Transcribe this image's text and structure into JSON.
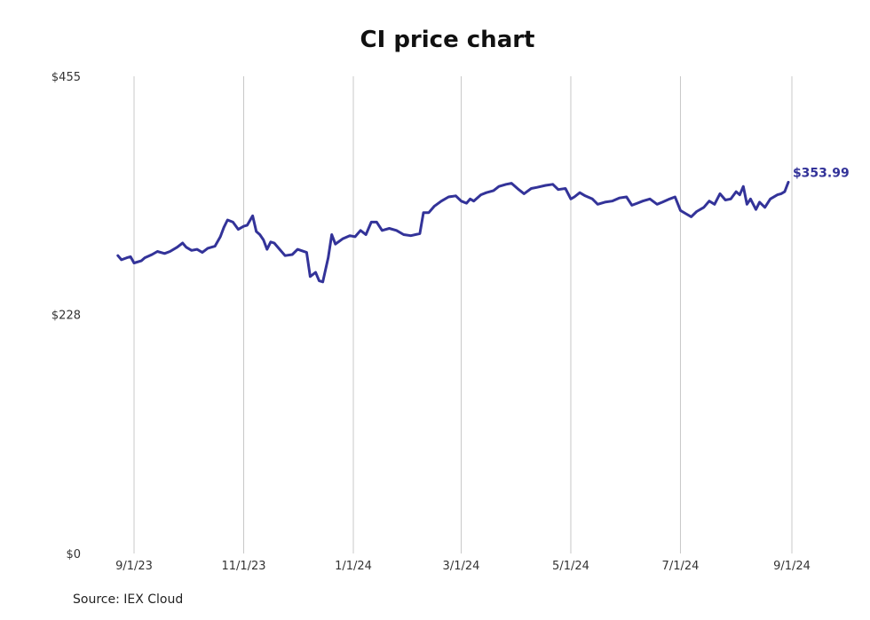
{
  "chart_data": {
    "type": "line",
    "title": "CI price chart",
    "xlabel": "",
    "ylabel": "",
    "source": "Source: IEX Cloud",
    "y_ticks": [
      "$0",
      "$228",
      "$455"
    ],
    "ylim": [
      0,
      455
    ],
    "x_ticks": [
      "9/1/23",
      "11/1/23",
      "1/1/24",
      "3/1/24",
      "5/1/24",
      "7/1/24",
      "9/1/24"
    ],
    "xlim": [
      "2023-08-14",
      "2024-09-30"
    ],
    "end_label": "$353.99",
    "line_color": "#333399",
    "grid": "vertical",
    "series": [
      {
        "name": "",
        "points": [
          [
            "2023-08-23",
            284
          ],
          [
            "2023-08-25",
            280
          ],
          [
            "2023-08-28",
            282
          ],
          [
            "2023-08-30",
            283
          ],
          [
            "2023-09-01",
            277
          ],
          [
            "2023-09-05",
            279
          ],
          [
            "2023-09-07",
            282
          ],
          [
            "2023-09-11",
            285
          ],
          [
            "2023-09-14",
            288
          ],
          [
            "2023-09-18",
            286
          ],
          [
            "2023-09-21",
            288
          ],
          [
            "2023-09-25",
            292
          ],
          [
            "2023-09-28",
            296
          ],
          [
            "2023-09-30",
            292
          ],
          [
            "2023-10-03",
            289
          ],
          [
            "2023-10-06",
            290
          ],
          [
            "2023-10-09",
            287
          ],
          [
            "2023-10-12",
            291
          ],
          [
            "2023-10-16",
            293
          ],
          [
            "2023-10-19",
            302
          ],
          [
            "2023-10-21",
            311
          ],
          [
            "2023-10-23",
            318
          ],
          [
            "2023-10-26",
            316
          ],
          [
            "2023-10-29",
            309
          ],
          [
            "2023-11-01",
            312
          ],
          [
            "2023-11-03",
            313
          ],
          [
            "2023-11-06",
            322
          ],
          [
            "2023-11-08",
            307
          ],
          [
            "2023-11-10",
            304
          ],
          [
            "2023-11-12",
            299
          ],
          [
            "2023-11-14",
            290
          ],
          [
            "2023-11-16",
            297
          ],
          [
            "2023-11-18",
            296
          ],
          [
            "2023-11-21",
            290
          ],
          [
            "2023-11-24",
            284
          ],
          [
            "2023-11-28",
            285
          ],
          [
            "2023-12-01",
            290
          ],
          [
            "2023-12-06",
            287
          ],
          [
            "2023-12-08",
            264
          ],
          [
            "2023-12-11",
            268
          ],
          [
            "2023-12-13",
            260
          ],
          [
            "2023-12-15",
            259
          ],
          [
            "2023-12-18",
            282
          ],
          [
            "2023-12-20",
            304
          ],
          [
            "2023-12-22",
            295
          ],
          [
            "2023-12-26",
            300
          ],
          [
            "2023-12-30",
            303
          ],
          [
            "2024-01-02",
            302
          ],
          [
            "2024-01-05",
            308
          ],
          [
            "2024-01-08",
            304
          ],
          [
            "2024-01-11",
            316
          ],
          [
            "2024-01-14",
            316
          ],
          [
            "2024-01-17",
            308
          ],
          [
            "2024-01-21",
            310
          ],
          [
            "2024-01-25",
            308
          ],
          [
            "2024-01-29",
            304
          ],
          [
            "2024-02-02",
            303
          ],
          [
            "2024-02-07",
            305
          ],
          [
            "2024-02-09",
            325
          ],
          [
            "2024-02-12",
            325
          ],
          [
            "2024-02-15",
            331
          ],
          [
            "2024-02-19",
            336
          ],
          [
            "2024-02-23",
            340
          ],
          [
            "2024-02-27",
            341
          ],
          [
            "2024-03-01",
            336
          ],
          [
            "2024-03-04",
            334
          ],
          [
            "2024-03-06",
            338
          ],
          [
            "2024-03-08",
            336
          ],
          [
            "2024-03-12",
            342
          ],
          [
            "2024-03-15",
            344
          ],
          [
            "2024-03-19",
            346
          ],
          [
            "2024-03-22",
            350
          ],
          [
            "2024-03-26",
            352
          ],
          [
            "2024-03-29",
            353
          ],
          [
            "2024-04-02",
            347
          ],
          [
            "2024-04-05",
            343
          ],
          [
            "2024-04-09",
            348
          ],
          [
            "2024-04-12",
            349
          ],
          [
            "2024-04-17",
            351
          ],
          [
            "2024-04-21",
            352
          ],
          [
            "2024-04-24",
            347
          ],
          [
            "2024-04-28",
            348
          ],
          [
            "2024-05-01",
            338
          ],
          [
            "2024-05-03",
            340
          ],
          [
            "2024-05-06",
            344
          ],
          [
            "2024-05-09",
            341
          ],
          [
            "2024-05-13",
            338
          ],
          [
            "2024-05-16",
            333
          ],
          [
            "2024-05-20",
            335
          ],
          [
            "2024-05-24",
            336
          ],
          [
            "2024-05-28",
            339
          ],
          [
            "2024-06-01",
            340
          ],
          [
            "2024-06-04",
            332
          ],
          [
            "2024-06-07",
            334
          ],
          [
            "2024-06-10",
            336
          ],
          [
            "2024-06-14",
            338
          ],
          [
            "2024-06-18",
            333
          ],
          [
            "2024-06-21",
            335
          ],
          [
            "2024-06-25",
            338
          ],
          [
            "2024-06-28",
            340
          ],
          [
            "2024-07-01",
            327
          ],
          [
            "2024-07-04",
            324
          ],
          [
            "2024-07-07",
            321
          ],
          [
            "2024-07-10",
            326
          ],
          [
            "2024-07-14",
            330
          ],
          [
            "2024-07-17",
            336
          ],
          [
            "2024-07-20",
            333
          ],
          [
            "2024-07-23",
            343
          ],
          [
            "2024-07-26",
            337
          ],
          [
            "2024-07-29",
            338
          ],
          [
            "2024-08-01",
            345
          ],
          [
            "2024-08-03",
            342
          ],
          [
            "2024-08-05",
            350
          ],
          [
            "2024-08-07",
            333
          ],
          [
            "2024-08-09",
            338
          ],
          [
            "2024-08-12",
            328
          ],
          [
            "2024-08-14",
            335
          ],
          [
            "2024-08-17",
            330
          ],
          [
            "2024-08-20",
            338
          ],
          [
            "2024-08-24",
            342
          ],
          [
            "2024-08-26",
            343
          ],
          [
            "2024-08-28",
            345
          ],
          [
            "2024-08-30",
            353.99
          ]
        ]
      }
    ]
  }
}
